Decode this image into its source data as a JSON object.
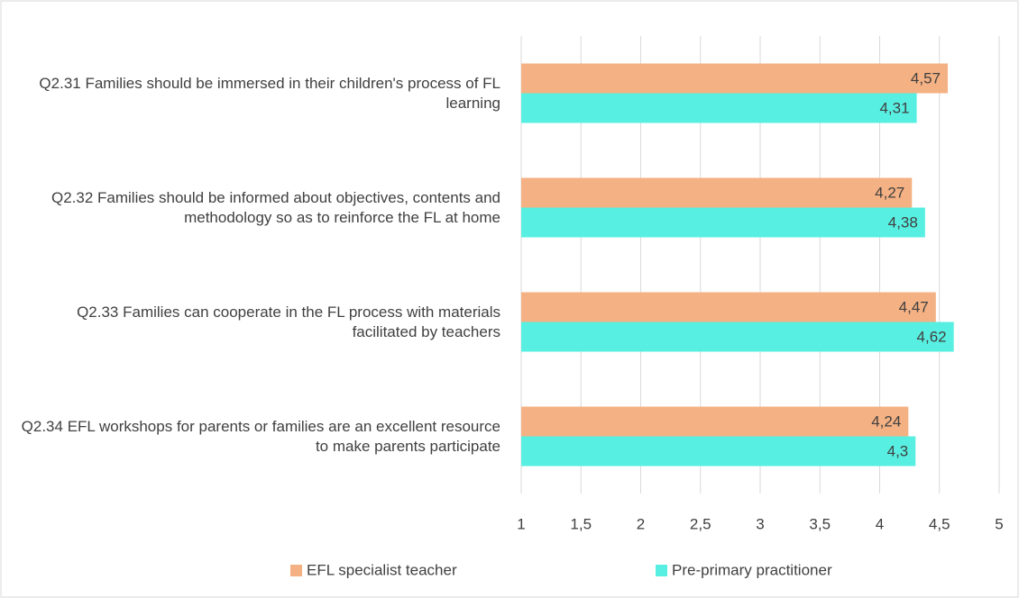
{
  "chart_data": {
    "type": "hbar",
    "categories": [
      "Q2.31 Families should be immersed in their children's process of FL learning",
      "Q2.32 Families should be informed about objectives, contents and methodology so as to reinforce the FL at home",
      "Q2.33 Families can cooperate in the FL process with materials facilitated by teachers",
      "Q2.34 EFL workshops for parents  or families are an excellent resource to make parents participate"
    ],
    "series": [
      {
        "name": "EFL specialist teacher",
        "color": "#f4b183",
        "values": [
          4.57,
          4.27,
          4.47,
          4.24
        ],
        "value_labels": [
          "4,57",
          "4,27",
          "4,47",
          "4,24"
        ]
      },
      {
        "name": "Pre-primary practitioner",
        "color": "#57efe1",
        "values": [
          4.31,
          4.38,
          4.62,
          4.3
        ],
        "value_labels": [
          "4,31",
          "4,38",
          "4,62",
          "4,3"
        ]
      }
    ],
    "xlim": [
      1,
      5
    ],
    "xticks": [
      1,
      {
        "value": 1.5,
        "label": "1,5"
      },
      2,
      {
        "value": 2.5,
        "label": "2,5"
      },
      3,
      {
        "value": 3.5,
        "label": "3,5"
      },
      4,
      {
        "value": 4.5,
        "label": "4,5"
      },
      5
    ],
    "grid": true,
    "legend": "bottom"
  }
}
